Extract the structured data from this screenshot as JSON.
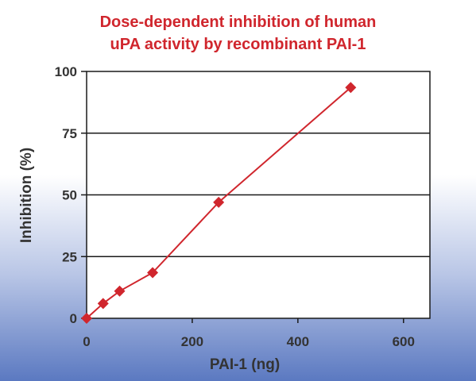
{
  "chart_data": {
    "type": "line",
    "title_line1": "Dose-dependent inhibition of human",
    "title_line2": "uPA activity by recombinant PAI-1",
    "xlabel": "PAI-1 (ng)",
    "ylabel": "Inhibition (%)",
    "xlim": [
      0,
      650
    ],
    "ylim": [
      0,
      100
    ],
    "xticks": [
      0,
      200,
      400,
      600
    ],
    "yticks": [
      0,
      25,
      50,
      75,
      100
    ],
    "grid": "horizontal",
    "series": [
      {
        "x": [
          0,
          31.25,
          62.5,
          125,
          250,
          500
        ],
        "y": [
          0,
          6,
          11,
          18.5,
          47,
          93.5
        ]
      }
    ],
    "colors": {
      "series": "#d0262d",
      "title": "#d0262d",
      "text": "#333333",
      "grid": "#1a1a1a"
    }
  }
}
